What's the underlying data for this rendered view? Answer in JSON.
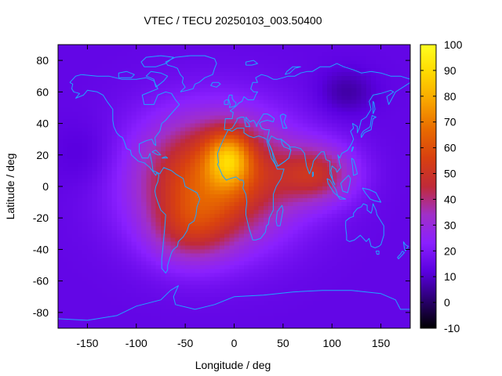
{
  "chart_data": {
    "type": "heatmap",
    "title": "VTEC / TECU 20250103_003.50400",
    "xlabel": "Longitude / deg",
    "ylabel": "Latitude / deg",
    "xlim": [
      -180,
      180
    ],
    "ylim": [
      -90,
      90
    ],
    "x_ticks": [
      -150,
      -100,
      -50,
      0,
      50,
      100,
      150
    ],
    "y_ticks": [
      80,
      60,
      40,
      20,
      0,
      -20,
      -40,
      -60,
      -80
    ],
    "colorbar": {
      "range": [
        -10,
        100
      ],
      "ticks": [
        100,
        90,
        80,
        70,
        60,
        50,
        40,
        30,
        20,
        10,
        0,
        -10
      ],
      "colormap": [
        "#000000",
        "#2a0070",
        "#5a00e0",
        "#8a20ff",
        "#a030c8",
        "#c02a38",
        "#d84010",
        "#e86a00",
        "#f8a400",
        "#ffd800",
        "#ffff20"
      ]
    },
    "background_tecu": 14,
    "enhancement_regions": [
      {
        "name": "sub-solar peak",
        "lon": -5,
        "lat": 18,
        "tecu": 98
      },
      {
        "name": "equatorial anomaly band",
        "lon": -20,
        "lat": 0,
        "tecu": 70
      },
      {
        "name": "south atlantic",
        "lon": -40,
        "lat": -25,
        "tecu": 60
      },
      {
        "name": "indian ocean",
        "lon": 80,
        "lat": 5,
        "tecu": 45
      }
    ],
    "overlay": "coastlines",
    "coastline_color": "#1fa6ff"
  }
}
